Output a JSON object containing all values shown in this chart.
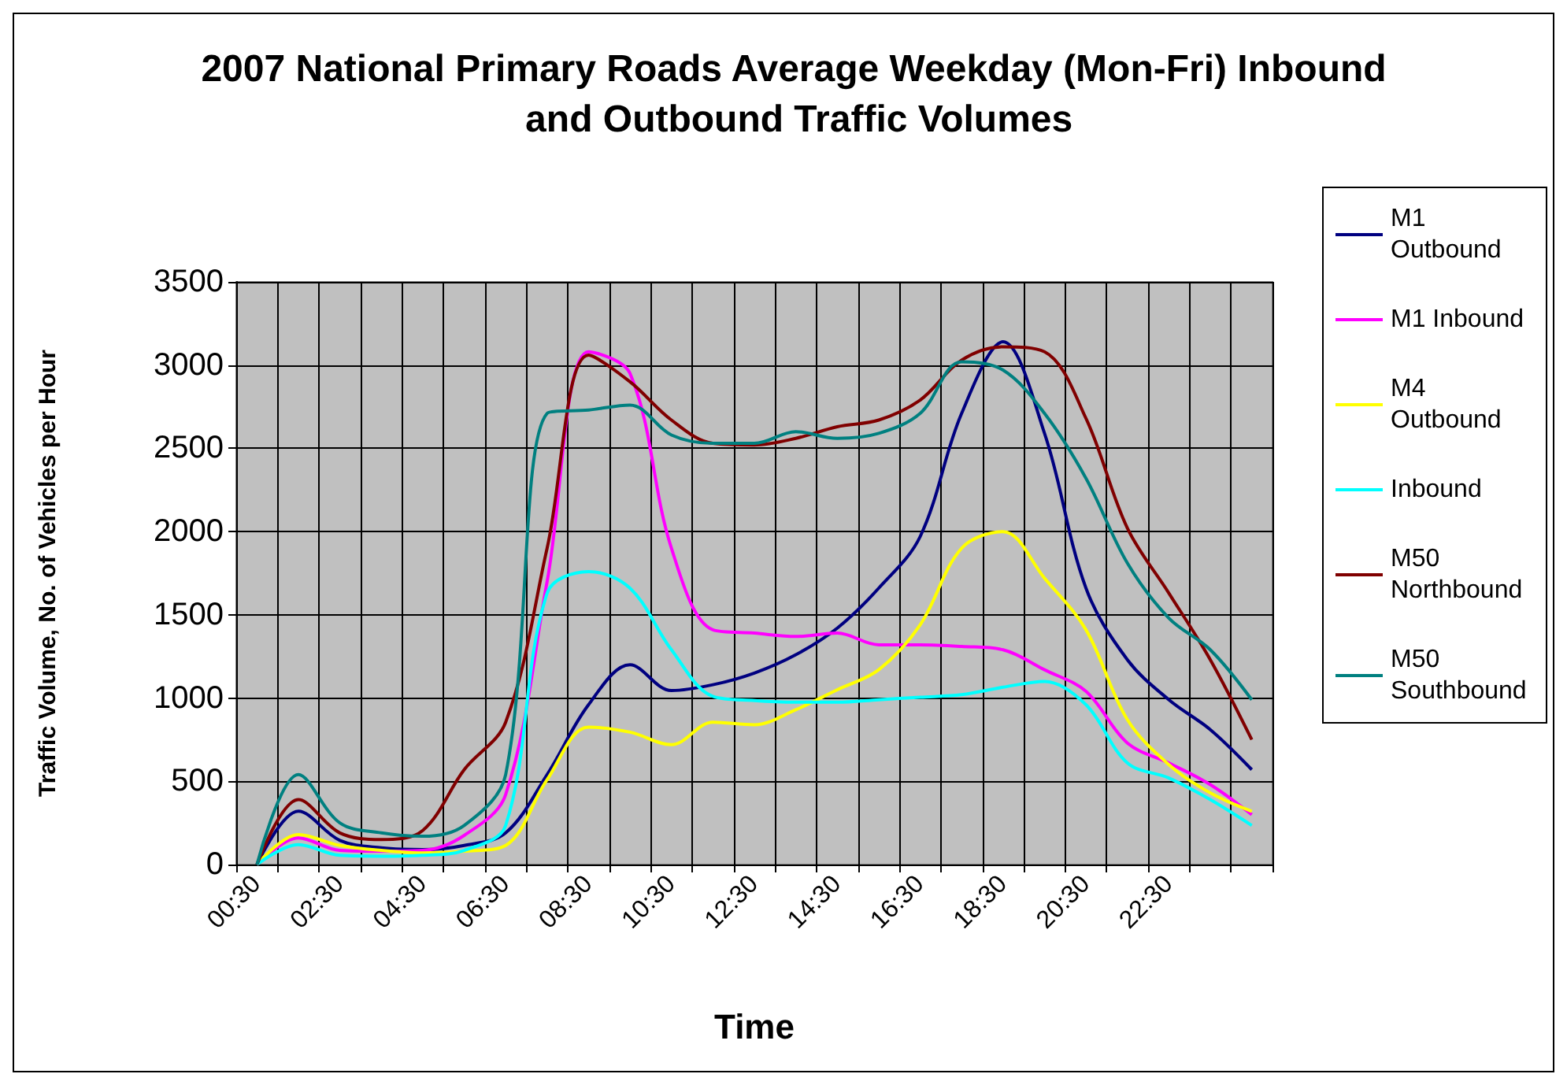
{
  "chart_data": {
    "type": "line",
    "title": "2007 National Primary Roads Average Weekday (Mon-Fri) Inbound and Outbound Traffic Volumes",
    "xlabel": "Time",
    "ylabel": "Traffic Volume, No. of Vehicles per Hour",
    "categories": [
      "00:30",
      null,
      "02:30",
      null,
      "04:30",
      null,
      "06:30",
      null,
      "08:30",
      null,
      "10:30",
      null,
      "12:30",
      null,
      "14:30",
      null,
      "16:30",
      null,
      "18:30",
      null,
      "20:30",
      null,
      "22:30",
      null,
      null
    ],
    "series": [
      {
        "name": "M1 Outbound",
        "color": "#000080",
        "values": [
          0,
          320,
          145,
          100,
          90,
          115,
          190,
          540,
          960,
          1200,
          1045,
          1080,
          1150,
          1260,
          1420,
          1660,
          1970,
          2710,
          3140,
          2590,
          1660,
          1230,
          990,
          810,
          570
        ]
      },
      {
        "name": "M1 Inbound",
        "color": "#ff00ff",
        "values": [
          0,
          160,
          85,
          80,
          85,
          175,
          420,
          1700,
          3080,
          2950,
          1900,
          1410,
          1390,
          1370,
          1390,
          1320,
          1320,
          1310,
          1290,
          1170,
          1040,
          730,
          610,
          480,
          300
        ]
      },
      {
        "name": "M4 Outbound",
        "color": "#ffff00",
        "values": [
          0,
          180,
          115,
          85,
          70,
          80,
          115,
          510,
          825,
          795,
          720,
          855,
          840,
          930,
          1050,
          1170,
          1440,
          1900,
          2000,
          1720,
          1410,
          870,
          600,
          430,
          320
        ]
      },
      {
        "name": "Inbound",
        "color": "#00ffff",
        "values": [
          0,
          120,
          55,
          50,
          55,
          85,
          235,
          1630,
          1760,
          1660,
          1290,
          1010,
          985,
          975,
          975,
          990,
          1005,
          1020,
          1065,
          1100,
          960,
          610,
          520,
          390,
          235
        ]
      },
      {
        "name": "M50 Northbound",
        "color": "#800000",
        "values": [
          0,
          390,
          190,
          150,
          205,
          570,
          855,
          1900,
          3060,
          2900,
          2670,
          2530,
          2520,
          2560,
          2630,
          2670,
          2790,
          3030,
          3110,
          3080,
          2680,
          2020,
          1630,
          1230,
          750
        ]
      },
      {
        "name": "M50 Southbound",
        "color": "#008080",
        "values": [
          0,
          540,
          250,
          190,
          170,
          235,
          540,
          2710,
          2730,
          2760,
          2580,
          2530,
          2530,
          2600,
          2560,
          2590,
          2710,
          3020,
          2970,
          2710,
          2320,
          1810,
          1480,
          1290,
          990
        ]
      }
    ],
    "ylim": [
      0,
      3500
    ],
    "yticks": [
      0,
      500,
      1000,
      1500,
      2000,
      2500,
      3000,
      3500
    ],
    "grid": true,
    "legend": "right",
    "marker": "none",
    "line_style": "solid"
  }
}
